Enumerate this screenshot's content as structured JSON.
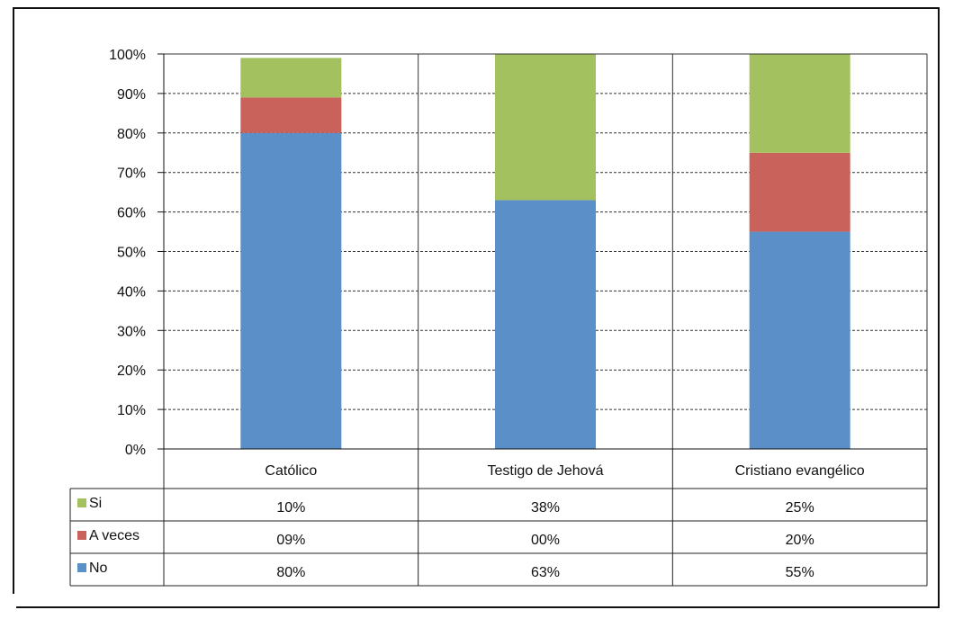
{
  "chart_data": {
    "type": "bar",
    "stacked": true,
    "categories": [
      "Católico",
      "Testigo de Jehová",
      "Cristiano evangélico"
    ],
    "series": [
      {
        "name": "No",
        "values": [
          80,
          63,
          55
        ],
        "labels": [
          "80%",
          "63%",
          "55%"
        ],
        "color": "#5b8fc8"
      },
      {
        "name": "A veces",
        "values": [
          9,
          0,
          20
        ],
        "labels": [
          "09%",
          "00%",
          "20%"
        ],
        "color": "#c9625a"
      },
      {
        "name": "Si",
        "values": [
          10,
          38,
          25
        ],
        "labels": [
          "10%",
          "38%",
          "25%"
        ],
        "color": "#a4c15f"
      }
    ],
    "yticks": [
      "0%",
      "10%",
      "20%",
      "30%",
      "40%",
      "50%",
      "60%",
      "70%",
      "80%",
      "90%",
      "100%"
    ],
    "ylim": [
      0,
      100
    ],
    "grid": true,
    "grid_style": "dashed",
    "data_table": true,
    "table_row_order": [
      "Si",
      "A veces",
      "No"
    ]
  }
}
